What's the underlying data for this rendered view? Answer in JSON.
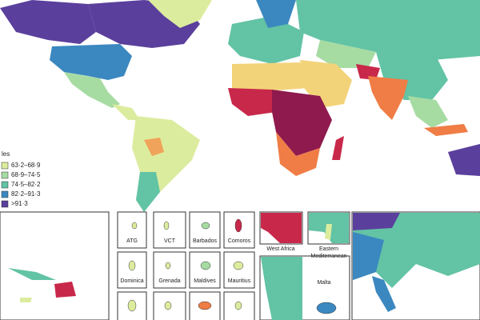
{
  "legend": {
    "title": "les",
    "items": [
      {
        "label": "63·2–68·9",
        "color": "#dcec9e"
      },
      {
        "label": "68·9–74·5",
        "color": "#a6dba2"
      },
      {
        "label": "74·5–82·2",
        "color": "#62c3a5"
      },
      {
        "label": "82·2–91·3",
        "color": "#3b88c0"
      },
      {
        "label": ">91·3",
        "color": "#5a3f9c"
      }
    ]
  },
  "insets": [
    {
      "label": "ATG"
    },
    {
      "label": "VCT"
    },
    {
      "label": "Barbados"
    },
    {
      "label": "Comoros"
    },
    {
      "label": "West Africa"
    },
    {
      "label": "Eastern Mediterranean"
    },
    {
      "label": "Dominica"
    },
    {
      "label": "Grenada"
    },
    {
      "label": "Maldives"
    },
    {
      "label": "Mauritius"
    },
    {
      "label": "Malta"
    }
  ]
}
